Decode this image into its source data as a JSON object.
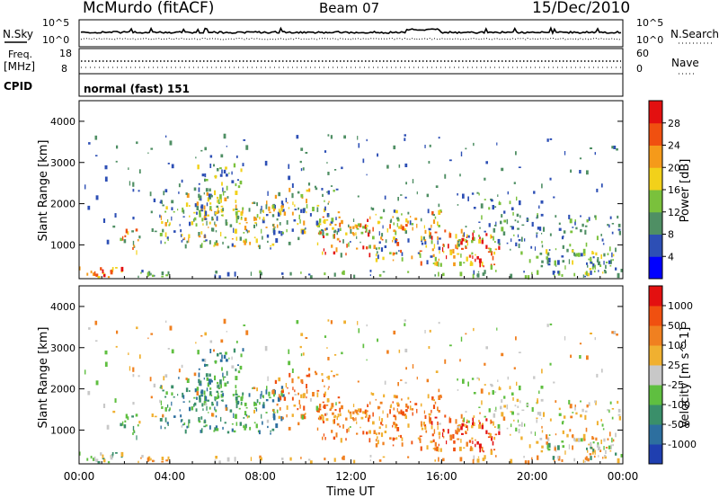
{
  "header": {
    "station": "McMurdo (fitACF)",
    "beam": "Beam 07",
    "date": "15/Dec/2010"
  },
  "noise_panel": {
    "left_label": "N.Sky",
    "left_tick_top": "10^5",
    "left_tick_bottom": "10^0",
    "right_label": "N.Search",
    "right_tick_top": "10^5",
    "right_tick_bottom": "10^0"
  },
  "freq_panel": {
    "label_line1": "Freq.",
    "label_line2": "[MHz]",
    "left_tick_top": "18",
    "left_tick_bottom": "8",
    "right_label": "Nave",
    "right_tick_top": "60",
    "right_tick_bottom": "0"
  },
  "cpid_panel": {
    "label": "CPID",
    "value": "normal (fast) 151"
  },
  "chart_data": [
    {
      "type": "heatmap",
      "panel": "power",
      "ylabel": "Slant Range [km]",
      "ylim": [
        180,
        4500
      ],
      "yticks": [
        "1000",
        "2000",
        "3000",
        "4000"
      ],
      "xlim": [
        "00:00",
        "24:00"
      ],
      "colorbar": {
        "label": "Power [dB]",
        "ticks": [
          "4",
          "8",
          "12",
          "16",
          "20",
          "24",
          "28"
        ],
        "colors": [
          "#0000ff",
          "#2d4fb5",
          "#4f8f64",
          "#7ac13c",
          "#f2d11a",
          "#f59a1a",
          "#f05010",
          "#e31010"
        ]
      }
    },
    {
      "type": "heatmap",
      "panel": "velocity",
      "ylabel": "Slant Range [km]",
      "ylim": [
        180,
        4500
      ],
      "yticks": [
        "1000",
        "2000",
        "3000",
        "4000"
      ],
      "xlim": [
        "00:00",
        "24:00"
      ],
      "xticks": [
        "00:00",
        "04:00",
        "08:00",
        "12:00",
        "16:00",
        "20:00",
        "00:00"
      ],
      "xlabel": "Time UT",
      "colorbar": {
        "label": "Velocity [m s^-1]",
        "ticks": [
          "1000",
          "500",
          "100",
          "25",
          "-25",
          "-100",
          "-500",
          "-1000"
        ],
        "colors": [
          "#1f3fb0",
          "#2d6f9f",
          "#3a8f6a",
          "#5fbf40",
          "#c8c8c8",
          "#f0b030",
          "#f08020",
          "#f05010",
          "#e31010"
        ]
      }
    }
  ]
}
